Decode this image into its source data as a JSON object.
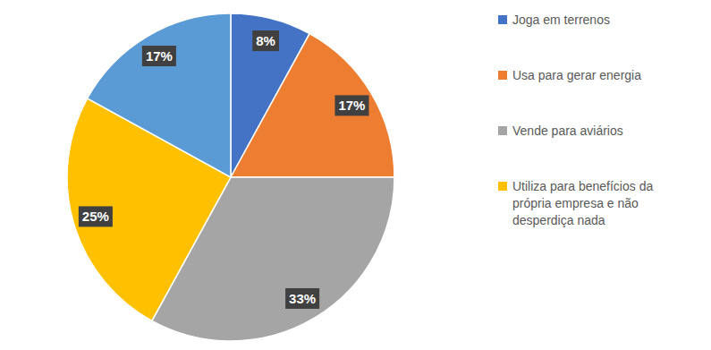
{
  "chart_data": {
    "type": "pie",
    "categories": [
      "Joga em terrenos",
      "Usa para gerar energia",
      "Vende para aviários",
      "Utiliza para benefícios da própria empresa e não desperdiça nada",
      null
    ],
    "values": [
      8,
      17,
      33,
      25,
      17
    ],
    "value_labels": [
      "8%",
      "17%",
      "33%",
      "25%",
      "17%"
    ],
    "colors": [
      "#4472c4",
      "#ed7d31",
      "#a5a5a5",
      "#ffc000",
      "#5b9bd5"
    ],
    "data_labels": true,
    "legend": "right"
  }
}
